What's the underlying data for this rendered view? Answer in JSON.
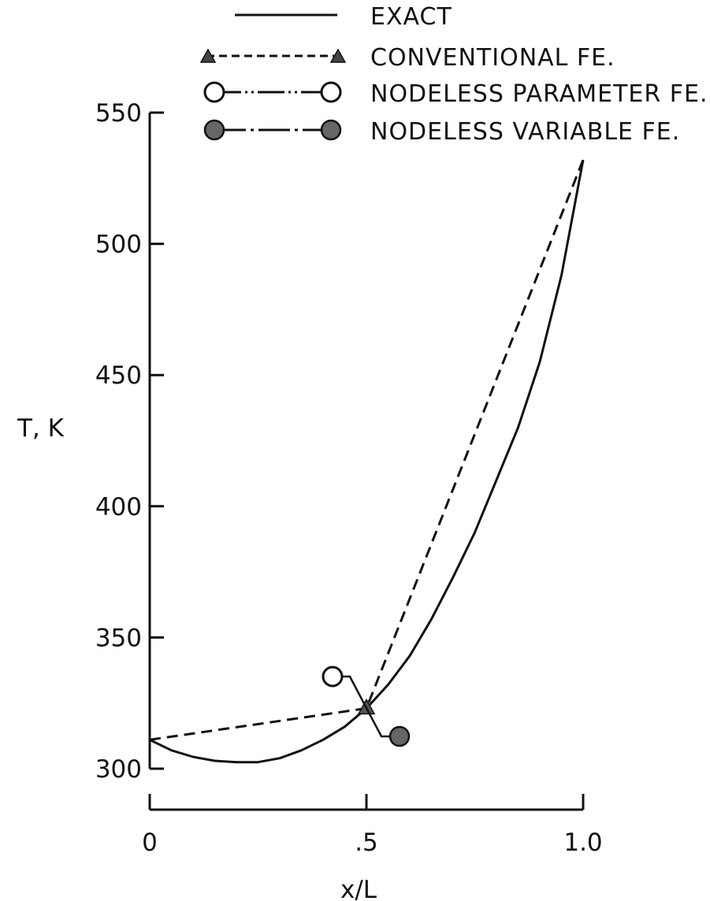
{
  "chart_data": {
    "type": "line",
    "title": "",
    "xlabel": "x/L",
    "ylabel": "T, K",
    "xlim": [
      0,
      1.0
    ],
    "ylim": [
      300,
      550
    ],
    "x_ticks": [
      {
        "value": 0,
        "label": "0"
      },
      {
        "value": 0.5,
        "label": ".5"
      },
      {
        "value": 1.0,
        "label": "1.0"
      }
    ],
    "y_ticks": [
      {
        "value": 300,
        "label": "300"
      },
      {
        "value": 350,
        "label": "350"
      },
      {
        "value": 400,
        "label": "400"
      },
      {
        "value": 450,
        "label": "450"
      },
      {
        "value": 500,
        "label": "500"
      },
      {
        "value": 550,
        "label": "550"
      }
    ],
    "grid": false,
    "legend_position": "top",
    "series": [
      {
        "name": "EXACT",
        "style": "solid",
        "marker": "none",
        "x": [
          0,
          0.05,
          0.1,
          0.15,
          0.2,
          0.25,
          0.3,
          0.35,
          0.4,
          0.45,
          0.5,
          0.55,
          0.6,
          0.65,
          0.7,
          0.75,
          0.8,
          0.85,
          0.9,
          0.95,
          1.0
        ],
        "y": [
          311,
          307,
          304.5,
          303,
          302.5,
          302.5,
          304,
          307,
          311,
          316,
          323,
          332,
          343,
          357,
          373,
          390,
          410,
          430,
          455,
          488,
          532
        ]
      },
      {
        "name": "CONVENTIONAL FE.",
        "style": "dashed",
        "marker": "triangle",
        "x": [
          0,
          0.5,
          1.0
        ],
        "y": [
          311,
          323,
          532
        ]
      },
      {
        "name": "NODELESS PARAMETER FE.",
        "style": "dash-dot-dot",
        "marker": "open-circle",
        "x": [
          0.5
        ],
        "y": [
          323
        ]
      },
      {
        "name": "NODELESS VARIABLE FE.",
        "style": "dash-dot",
        "marker": "filled-circle",
        "x": [
          0.5
        ],
        "y": [
          323
        ]
      }
    ]
  }
}
